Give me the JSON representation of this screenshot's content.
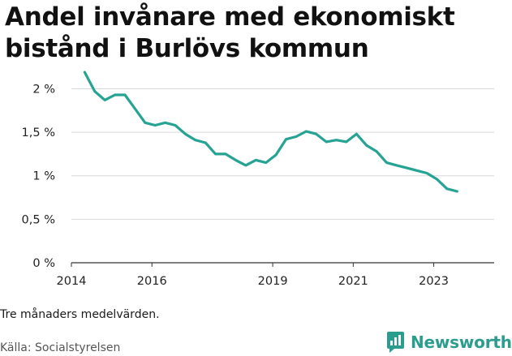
{
  "title_lines": [
    "Andel invånare med ekonomiskt",
    "bistånd i Burlövs kommun"
  ],
  "note": "Tre månaders medelvärden.",
  "source": "Källa: Socialstyrelsen",
  "brand": {
    "name": "Newsworthy",
    "logo_icon": "newsworthy-chart-logo-icon",
    "color": "#2a9d8f"
  },
  "colors": {
    "line": "#26a393",
    "grid": "#d9d9d9",
    "axis": "#333333"
  },
  "chart_data": {
    "type": "line",
    "title": "Andel invånare med ekonomiskt bistånd i Burlövs kommun",
    "xlabel": "",
    "ylabel": "",
    "xlim": [
      2014.0,
      2024.5
    ],
    "ylim": [
      0,
      2.2
    ],
    "x_ticks": [
      {
        "value": 2014.0,
        "label": "2014"
      },
      {
        "value": 2016.0,
        "label": "2016"
      },
      {
        "value": 2019.0,
        "label": "2019"
      },
      {
        "value": 2021.0,
        "label": "2021"
      },
      {
        "value": 2023.0,
        "label": "2023"
      }
    ],
    "y_ticks": [
      {
        "value": 0,
        "label": "0 %"
      },
      {
        "value": 0.5,
        "label": "0,5 %"
      },
      {
        "value": 1.0,
        "label": "1 %"
      },
      {
        "value": 1.5,
        "label": "1,5 %"
      },
      {
        "value": 2.0,
        "label": "2 %"
      }
    ],
    "grid": true,
    "series": [
      {
        "name": "Andel invånare med ekonomiskt bistånd",
        "x": [
          2014.33,
          2014.58,
          2014.83,
          2015.08,
          2015.33,
          2015.58,
          2015.83,
          2016.08,
          2016.33,
          2016.58,
          2016.83,
          2017.08,
          2017.33,
          2017.58,
          2017.83,
          2018.08,
          2018.33,
          2018.58,
          2018.83,
          2019.08,
          2019.33,
          2019.58,
          2019.83,
          2020.08,
          2020.33,
          2020.58,
          2020.83,
          2021.08,
          2021.33,
          2021.58,
          2021.83,
          2022.08,
          2022.33,
          2022.58,
          2022.83,
          2023.08,
          2023.33,
          2023.58
        ],
        "values": [
          2.19,
          1.97,
          1.87,
          1.93,
          1.93,
          1.77,
          1.61,
          1.58,
          1.61,
          1.58,
          1.48,
          1.41,
          1.38,
          1.25,
          1.25,
          1.18,
          1.12,
          1.18,
          1.15,
          1.24,
          1.42,
          1.45,
          1.51,
          1.48,
          1.39,
          1.41,
          1.39,
          1.48,
          1.35,
          1.28,
          1.15,
          1.12,
          1.09,
          1.06,
          1.03,
          0.96,
          0.85,
          0.82
        ]
      }
    ]
  }
}
